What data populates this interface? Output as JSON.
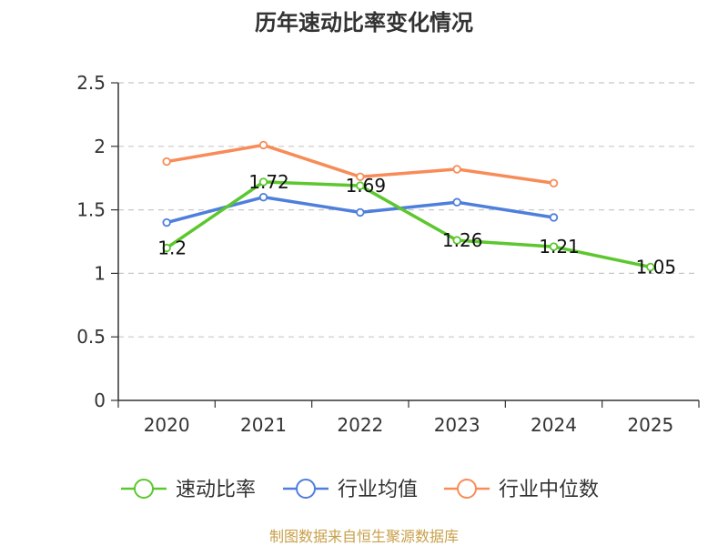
{
  "chart_data": {
    "type": "line",
    "title": "历年速动比率变化情况",
    "categories": [
      "2020",
      "2021",
      "2022",
      "2023",
      "2024",
      "2025"
    ],
    "ylim": [
      0,
      2.5
    ],
    "yticks": [
      "0",
      "0.5",
      "1",
      "1.5",
      "2",
      "2.5"
    ],
    "grid": true,
    "legend_position": "bottom",
    "series": [
      {
        "name": "速动比率",
        "color": "#5cc72e",
        "values": [
          1.2,
          1.72,
          1.69,
          1.26,
          1.21,
          1.05
        ],
        "labels": [
          "1.2",
          "1.72",
          "1.69",
          "1.26",
          "1.21",
          "1.05"
        ]
      },
      {
        "name": "行业均值",
        "color": "#4e7fdc",
        "values": [
          1.4,
          1.6,
          1.48,
          1.56,
          1.44,
          null
        ]
      },
      {
        "name": "行业中位数",
        "color": "#f78c58",
        "values": [
          1.88,
          2.01,
          1.76,
          1.82,
          1.71,
          null
        ]
      }
    ]
  },
  "footer": {
    "source": "制图数据来自恒生聚源数据库"
  }
}
